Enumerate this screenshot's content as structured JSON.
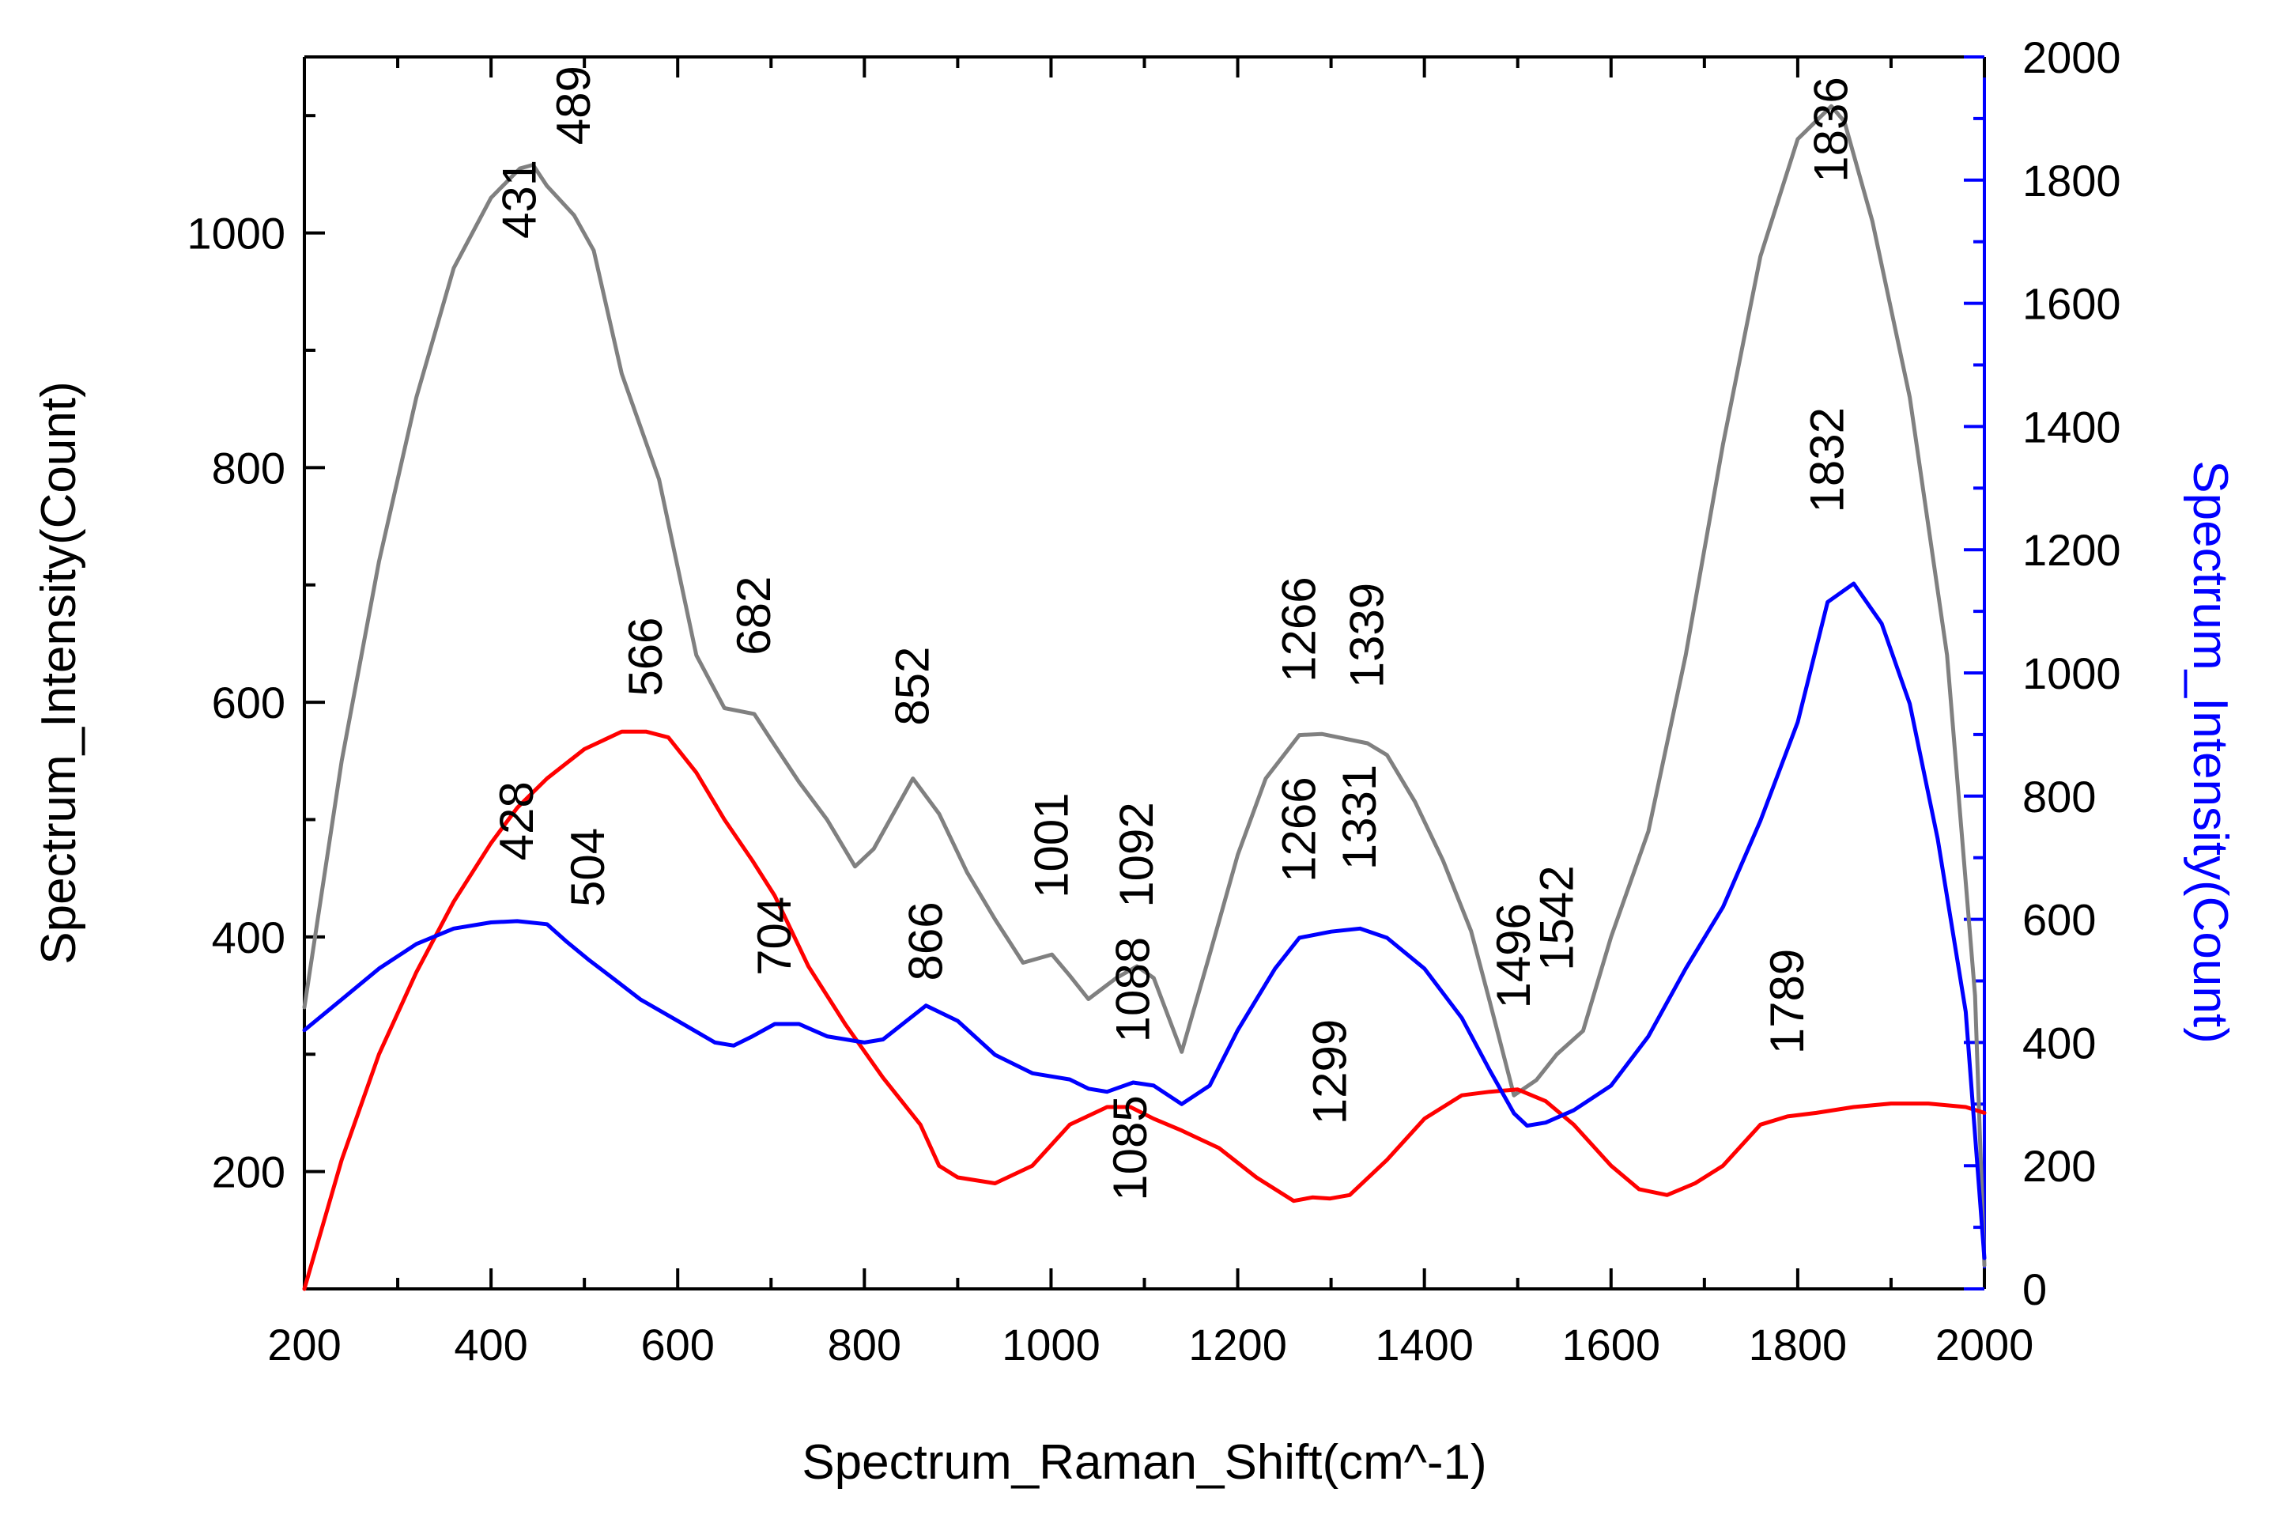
{
  "chart_data": {
    "type": "line",
    "title": "",
    "xlabel": "Spectrum_Raman_Shift(cm^-1)",
    "ylabel": "Spectrum_Intensity(Count)",
    "ylabel_right": "Spectrum_Intensity(Count)",
    "xlim": [
      200,
      2000
    ],
    "ylim": [
      100,
      1150
    ],
    "ylim_right": [
      0,
      2000
    ],
    "xticks": [
      "200",
      "400",
      "600",
      "800",
      "1000",
      "1200",
      "1400",
      "1600",
      "1800",
      "2000"
    ],
    "yticks": [
      "200",
      "400",
      "600",
      "800",
      "1000"
    ],
    "yticks_right": [
      "0",
      "200",
      "400",
      "600",
      "800",
      "1000",
      "1200",
      "1400",
      "1600",
      "1800",
      "2000"
    ],
    "series": [
      {
        "name": "gray",
        "color": "#808080",
        "axis": "left",
        "x": [
          200,
          240,
          280,
          320,
          360,
          400,
          431,
          445,
          460,
          489,
          510,
          540,
          580,
          620,
          650,
          682,
          700,
          730,
          760,
          790,
          810,
          852,
          880,
          910,
          940,
          970,
          1001,
          1020,
          1040,
          1070,
          1092,
          1110,
          1140,
          1170,
          1200,
          1230,
          1266,
          1290,
          1339,
          1360,
          1390,
          1420,
          1450,
          1470,
          1496,
          1520,
          1542,
          1570,
          1600,
          1640,
          1680,
          1720,
          1760,
          1800,
          1836,
          1850,
          1880,
          1920,
          1960,
          1990,
          2000
        ],
        "values": [
          340,
          550,
          720,
          860,
          970,
          1030,
          1055,
          1058,
          1040,
          1015,
          985,
          880,
          790,
          640,
          595,
          590,
          568,
          532,
          500,
          460,
          475,
          535,
          505,
          455,
          415,
          378,
          385,
          367,
          347,
          365,
          375,
          365,
          302,
          385,
          470,
          535,
          572,
          573,
          565,
          555,
          515,
          465,
          405,
          345,
          265,
          278,
          300,
          320,
          400,
          490,
          640,
          820,
          980,
          1080,
          1108,
          1095,
          1010,
          860,
          640,
          350,
          120
        ],
        "labels": [
          {
            "x": 431,
            "y": 995,
            "text": "431"
          },
          {
            "x": 489,
            "y": 1075,
            "text": "489"
          },
          {
            "x": 682,
            "y": 640,
            "text": "682"
          },
          {
            "x": 852,
            "y": 580,
            "text": "852"
          },
          {
            "x": 1001,
            "y": 433,
            "text": "1001"
          },
          {
            "x": 1092,
            "y": 425,
            "text": "1092"
          },
          {
            "x": 1266,
            "y": 617,
            "text": "1266"
          },
          {
            "x": 1339,
            "y": 612,
            "text": "1339"
          },
          {
            "x": 1542,
            "y": 371,
            "text": "1542"
          },
          {
            "x": 1836,
            "y": 1043,
            "text": "1836"
          }
        ]
      },
      {
        "name": "red",
        "color": "#ff0000",
        "axis": "left",
        "x": [
          200,
          240,
          280,
          320,
          360,
          400,
          428,
          460,
          500,
          540,
          566,
          590,
          620,
          650,
          680,
          704,
          740,
          780,
          820,
          860,
          880,
          900,
          940,
          980,
          1020,
          1060,
          1085,
          1110,
          1140,
          1180,
          1220,
          1260,
          1280,
          1299,
          1320,
          1360,
          1400,
          1440,
          1470,
          1500,
          1530,
          1560,
          1600,
          1630,
          1660,
          1690,
          1720,
          1760,
          1789,
          1820,
          1860,
          1900,
          1940,
          1980,
          2000
        ],
        "values": [
          100,
          210,
          300,
          370,
          430,
          480,
          510,
          535,
          560,
          575,
          575,
          570,
          540,
          500,
          465,
          435,
          375,
          325,
          280,
          240,
          205,
          195,
          190,
          205,
          240,
          255,
          255,
          245,
          235,
          220,
          195,
          175,
          178,
          177,
          180,
          210,
          245,
          265,
          268,
          270,
          260,
          240,
          205,
          185,
          180,
          190,
          205,
          240,
          247,
          250,
          255,
          258,
          258,
          255,
          250
        ],
        "labels": [
          {
            "x": 428,
            "y": 465,
            "text": "428"
          },
          {
            "x": 566,
            "y": 605,
            "text": "566"
          },
          {
            "x": 704,
            "y": 367,
            "text": "704"
          },
          {
            "x": 1085,
            "y": 175,
            "text": "1085"
          },
          {
            "x": 1299,
            "y": 240,
            "text": "1299"
          },
          {
            "x": 1789,
            "y": 300,
            "text": "1789"
          }
        ]
      },
      {
        "name": "blue",
        "color": "#0000ff",
        "axis": "right",
        "x": [
          200,
          240,
          280,
          320,
          360,
          400,
          428,
          460,
          480,
          504,
          530,
          560,
          600,
          640,
          660,
          680,
          704,
          730,
          760,
          800,
          820,
          866,
          900,
          940,
          980,
          1020,
          1040,
          1060,
          1088,
          1110,
          1140,
          1170,
          1200,
          1240,
          1266,
          1300,
          1331,
          1360,
          1400,
          1440,
          1470,
          1496,
          1510,
          1530,
          1560,
          1600,
          1640,
          1680,
          1720,
          1760,
          1800,
          1832,
          1860,
          1890,
          1920,
          1950,
          1980,
          2000
        ],
        "values": [
          420,
          470,
          520,
          560,
          585,
          595,
          597,
          592,
          565,
          535,
          505,
          470,
          435,
          400,
          395,
          410,
          430,
          430,
          410,
          400,
          405,
          460,
          435,
          380,
          350,
          340,
          325,
          320,
          335,
          330,
          300,
          330,
          420,
          520,
          570,
          580,
          585,
          570,
          520,
          440,
          355,
          285,
          265,
          270,
          290,
          330,
          410,
          520,
          620,
          760,
          920,
          1115,
          1145,
          1080,
          950,
          730,
          450,
          50
        ],
        "labels": [
          {
            "x": 504,
            "y": 620,
            "text": "504"
          },
          {
            "x": 866,
            "y": 500,
            "text": "866"
          },
          {
            "x": 1088,
            "y": 400,
            "text": "1088"
          },
          {
            "x": 1266,
            "y": 660,
            "text": "1266"
          },
          {
            "x": 1331,
            "y": 680,
            "text": "1331"
          },
          {
            "x": 1496,
            "y": 455,
            "text": "1496"
          },
          {
            "x": 1832,
            "y": 1260,
            "text": "1832"
          }
        ]
      }
    ]
  }
}
